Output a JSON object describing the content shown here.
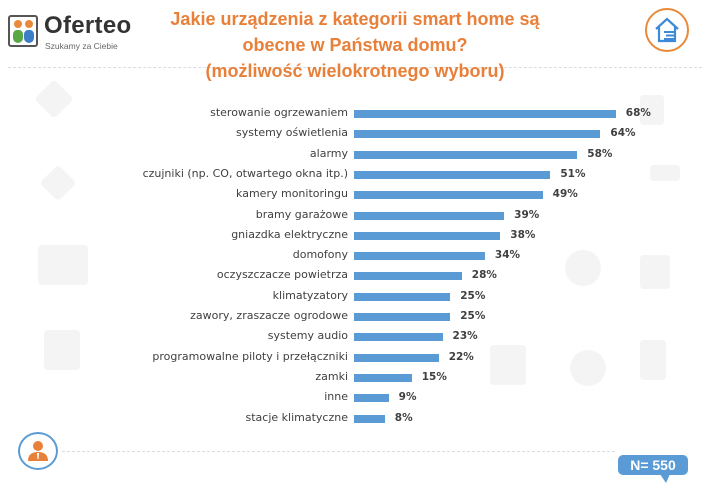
{
  "brand": {
    "name": "Oferteo",
    "tagline": "Szukamy za Ciebie"
  },
  "header": {
    "title_lines": [
      "Jakie urządzenia z kategorii smart home są",
      "obecne w Państwa domu?",
      "(możliwość wielokrotnego wyboru)"
    ]
  },
  "footer": {
    "sample_size": "N= 550"
  },
  "colors": {
    "title": "#e8803a",
    "bar": "#5b9bd5",
    "badge": "#5b9bd5"
  },
  "chart_data": {
    "type": "bar",
    "orientation": "horizontal",
    "title": "Jakie urządzenia z kategorii smart home są obecne w Państwa domu? (możliwość wielokrotnego wyboru)",
    "xlabel": "",
    "ylabel": "",
    "unit": "%",
    "xlim": [
      0,
      100
    ],
    "grid": false,
    "legend": null,
    "sample_size": "N= 550",
    "categories": [
      "sterowanie ogrzewaniem",
      "systemy oświetlenia",
      "alarmy",
      "czujniki (np. CO, otwartego okna itp.)",
      "kamery monitoringu",
      "bramy garażowe",
      "gniazdka elektryczne",
      "domofony",
      "oczyszczacze powietrza",
      "klimatyzatory",
      "zawory, zraszacze ogrodowe",
      "systemy audio",
      "programowalne piloty i przełączniki",
      "zamki",
      "inne",
      "stacje klimatyczne"
    ],
    "values": [
      68,
      64,
      58,
      51,
      49,
      39,
      38,
      34,
      28,
      25,
      25,
      23,
      22,
      15,
      9,
      8
    ],
    "labels": [
      "68%",
      "64%",
      "58%",
      "51%",
      "49%",
      "39%",
      "38%",
      "34%",
      "28%",
      "25%",
      "25%",
      "23%",
      "22%",
      "15%",
      "9%",
      "8%"
    ]
  }
}
